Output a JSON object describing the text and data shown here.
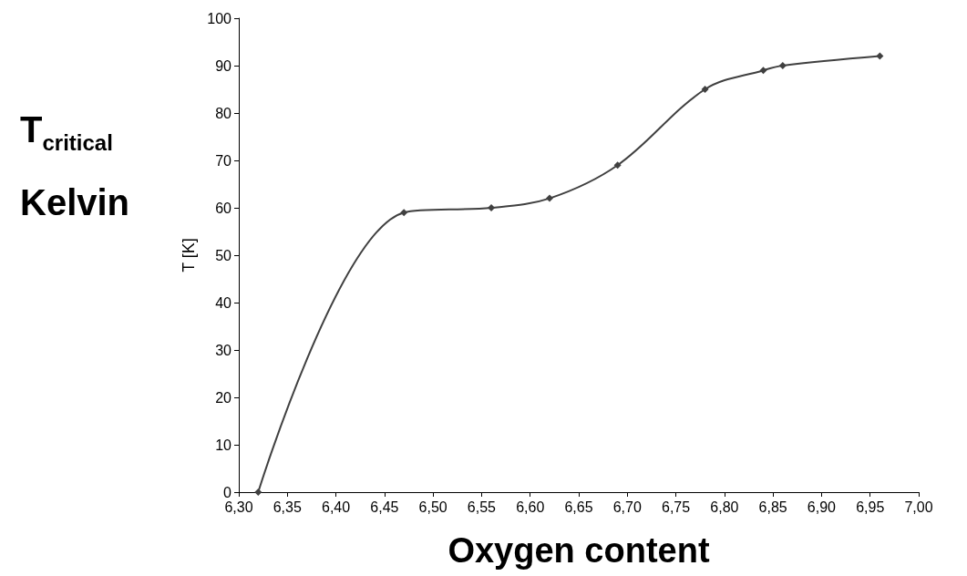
{
  "chart_data": {
    "type": "line",
    "xlabel": "Oxygen content",
    "ylabel": "T [K]",
    "annotations": [
      "T$_{critical}$",
      "Kelvin"
    ],
    "x": [
      6.32,
      6.47,
      6.56,
      6.62,
      6.69,
      6.78,
      6.84,
      6.86,
      6.96
    ],
    "series": [
      {
        "color": "#404040",
        "values": [
          0,
          59,
          60,
          62,
          69,
          85,
          89,
          90,
          92
        ]
      }
    ],
    "xlim": [
      6.3,
      7.0
    ],
    "xticks": [
      {
        "value": 6.3,
        "label": "6,30"
      },
      {
        "value": 6.35,
        "label": "6,35"
      },
      {
        "value": 6.4,
        "label": "6,40"
      },
      {
        "value": 6.45,
        "label": "6,45"
      },
      {
        "value": 6.5,
        "label": "6,50"
      },
      {
        "value": 6.55,
        "label": "6,55"
      },
      {
        "value": 6.6,
        "label": "6,60"
      },
      {
        "value": 6.65,
        "label": "6,65"
      },
      {
        "value": 6.7,
        "label": "6,70"
      },
      {
        "value": 6.75,
        "label": "6,75"
      },
      {
        "value": 6.8,
        "label": "6,80"
      },
      {
        "value": 6.85,
        "label": "6,85"
      },
      {
        "value": 6.9,
        "label": "6,90"
      },
      {
        "value": 6.95,
        "label": "6,95"
      },
      {
        "value": 7.0,
        "label": "7,00"
      }
    ],
    "ylim": [
      0,
      100
    ],
    "yticks": [
      0,
      10,
      20,
      30,
      40,
      50,
      60,
      70,
      80,
      90,
      100
    ],
    "grid": false,
    "marker": "diamond",
    "line_style": "solid"
  }
}
